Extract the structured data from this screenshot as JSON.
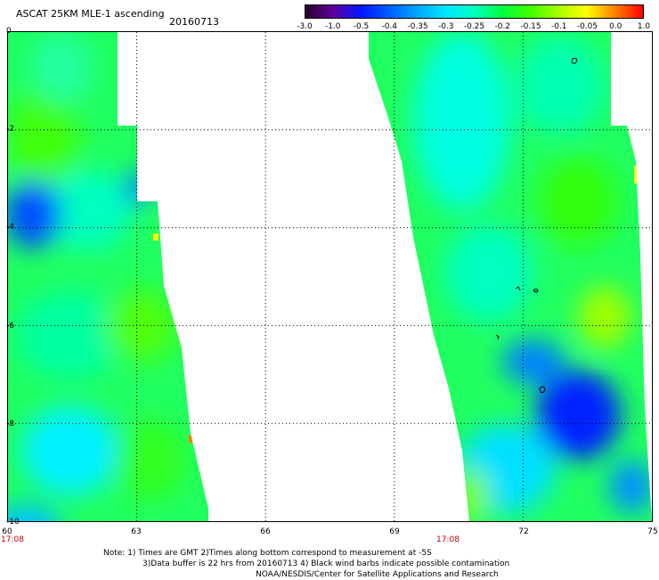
{
  "header": {
    "title": "ASCAT 25KM MLE-1 ascending",
    "date": "20160713"
  },
  "colorbar": {
    "labels": [
      "-3.0",
      "-1.0",
      "-0.5",
      "-0.4",
      "-0.35",
      "-0.3",
      "-0.25",
      "-0.2",
      "-0.15",
      "-0.1",
      "-0.05",
      "0.0",
      "1.0"
    ],
    "colors": [
      "#2a0028",
      "#6000a0",
      "#0018ff",
      "#0060ff",
      "#00a8ff",
      "#00e8ff",
      "#00ffc0",
      "#00ff40",
      "#40ff00",
      "#a8ff00",
      "#ffff00",
      "#ff8000",
      "#ff0000"
    ]
  },
  "axes": {
    "y_ticks": [
      "0",
      "-2",
      "-4",
      "-6",
      "-8",
      "-10"
    ],
    "x_ticks": [
      "60",
      "63",
      "66",
      "69",
      "72",
      "75"
    ],
    "time_labels": [
      "17:08",
      "17:08"
    ]
  },
  "notes": [
    "Note: 1) Times are GMT 2)Times along bottom correspond to measurement at -5S",
    "3)Data buffer is 22 hrs from 20160713 4) Black wind barbs indicate possible contamination",
    "NOAA/NESDIS/Center for Satellite Applications and Research"
  ]
}
